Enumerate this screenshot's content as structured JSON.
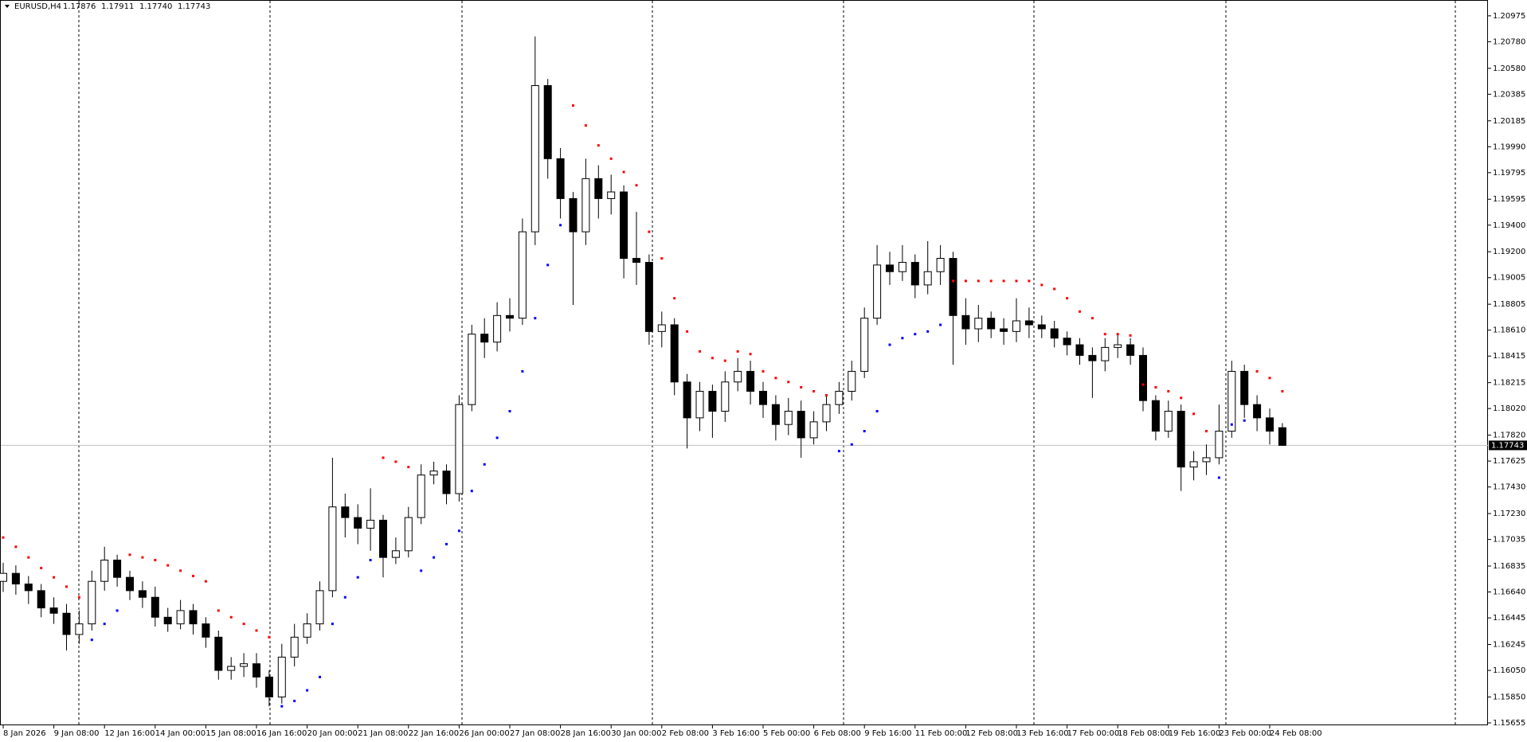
{
  "chart_data": {
    "type": "candlestick",
    "title": "EURUSD,H4",
    "ohlc_labels": [
      "1.17876",
      "1.17911",
      "1.17740",
      "1.17743"
    ],
    "price_label": {
      "value": 1.17743,
      "label": "1.17743"
    },
    "bull_color": "#ffffff",
    "bear_color": "#000000",
    "sar_colors": {
      "above": "#ff0000",
      "below": "#0000ff"
    },
    "open": [
      1.1672,
      1.1678,
      1.167,
      1.1665,
      1.1652,
      1.1648,
      1.1632,
      1.164,
      1.1672,
      1.1688,
      1.1675,
      1.1665,
      1.166,
      1.1645,
      1.164,
      1.165,
      1.164,
      1.163,
      1.1605,
      1.1608,
      1.161,
      1.16,
      1.1585,
      1.1615,
      1.163,
      1.164,
      1.1665,
      1.1728,
      1.172,
      1.1712,
      1.1718,
      1.169,
      1.1695,
      1.172,
      1.1752,
      1.1755,
      1.1738,
      1.1805,
      1.1858,
      1.1852,
      1.1872,
      1.187,
      1.1935,
      1.2045,
      1.199,
      1.196,
      1.1935,
      1.1975,
      1.196,
      1.1965,
      1.1915,
      1.1912,
      1.186,
      1.1865,
      1.1822,
      1.1795,
      1.1815,
      1.18,
      1.1822,
      1.183,
      1.1815,
      1.1805,
      1.179,
      1.18,
      1.178,
      1.1792,
      1.1805,
      1.1815,
      1.183,
      1.187,
      1.191,
      1.1905,
      1.1912,
      1.1895,
      1.1905,
      1.1915,
      1.1872,
      1.1862,
      1.187,
      1.1862,
      1.186,
      1.1868,
      1.1865,
      1.1862,
      1.1855,
      1.185,
      1.1842,
      1.1838,
      1.1848,
      1.185,
      1.1842,
      1.1808,
      1.1785,
      1.18,
      1.1758,
      1.1762,
      1.1765,
      1.1785,
      1.183,
      1.1805,
      1.1795,
      1.17876
    ],
    "high": [
      1.1686,
      1.1684,
      1.1676,
      1.167,
      1.166,
      1.1655,
      1.165,
      1.168,
      1.1698,
      1.1692,
      1.168,
      1.1672,
      1.1668,
      1.1652,
      1.1658,
      1.1655,
      1.1645,
      1.1635,
      1.1615,
      1.1618,
      1.1618,
      1.1605,
      1.1625,
      1.164,
      1.1648,
      1.1672,
      1.1765,
      1.1738,
      1.173,
      1.1742,
      1.1722,
      1.1705,
      1.1728,
      1.176,
      1.1762,
      1.176,
      1.1812,
      1.1865,
      1.187,
      1.1882,
      1.1885,
      1.1945,
      1.2082,
      1.205,
      1.1998,
      1.1965,
      1.199,
      1.1985,
      1.1978,
      1.197,
      1.195,
      1.1918,
      1.1875,
      1.187,
      1.1828,
      1.1822,
      1.182,
      1.183,
      1.184,
      1.1838,
      1.1822,
      1.1812,
      1.181,
      1.1808,
      1.18,
      1.1812,
      1.1822,
      1.1838,
      1.1878,
      1.1925,
      1.192,
      1.1925,
      1.1918,
      1.1928,
      1.1925,
      1.192,
      1.1885,
      1.188,
      1.1875,
      1.187,
      1.1885,
      1.1878,
      1.1872,
      1.1868,
      1.186,
      1.1855,
      1.1848,
      1.1855,
      1.1858,
      1.1855,
      1.1848,
      1.1812,
      1.1808,
      1.1805,
      1.177,
      1.1775,
      1.1805,
      1.1838,
      1.1835,
      1.1812,
      1.1802,
      1.17911
    ],
    "low": [
      1.1664,
      1.1662,
      1.1655,
      1.1645,
      1.164,
      1.162,
      1.1625,
      1.1635,
      1.1665,
      1.1668,
      1.1658,
      1.1652,
      1.1638,
      1.1634,
      1.1636,
      1.1632,
      1.1622,
      1.1598,
      1.1598,
      1.16,
      1.1592,
      1.1578,
      1.158,
      1.1608,
      1.1625,
      1.1635,
      1.166,
      1.1705,
      1.17,
      1.1695,
      1.1675,
      1.1685,
      1.169,
      1.1715,
      1.1745,
      1.173,
      1.1732,
      1.18,
      1.184,
      1.1845,
      1.186,
      1.1865,
      1.1925,
      1.1975,
      1.1945,
      1.188,
      1.1925,
      1.1945,
      1.1948,
      1.19,
      1.1895,
      1.185,
      1.1848,
      1.1812,
      1.1772,
      1.1785,
      1.178,
      1.1792,
      1.1815,
      1.1805,
      1.1795,
      1.1778,
      1.1782,
      1.1765,
      1.1775,
      1.1785,
      1.1798,
      1.1808,
      1.1825,
      1.1865,
      1.1895,
      1.1898,
      1.1885,
      1.1888,
      1.1895,
      1.1835,
      1.185,
      1.1852,
      1.1855,
      1.185,
      1.1852,
      1.1855,
      1.1855,
      1.1848,
      1.1842,
      1.1835,
      1.181,
      1.183,
      1.184,
      1.1835,
      1.18,
      1.1778,
      1.178,
      1.174,
      1.1748,
      1.1752,
      1.176,
      1.178,
      1.1795,
      1.1785,
      1.1775,
      1.1774
    ],
    "close": [
      1.1678,
      1.167,
      1.1665,
      1.1652,
      1.1648,
      1.1632,
      1.164,
      1.1672,
      1.1688,
      1.1675,
      1.1665,
      1.166,
      1.1645,
      1.164,
      1.165,
      1.164,
      1.163,
      1.1605,
      1.1608,
      1.161,
      1.16,
      1.1585,
      1.1615,
      1.163,
      1.164,
      1.1665,
      1.1728,
      1.172,
      1.1712,
      1.1718,
      1.169,
      1.1695,
      1.172,
      1.1752,
      1.1755,
      1.1738,
      1.1805,
      1.1858,
      1.1852,
      1.1872,
      1.187,
      1.1935,
      1.2045,
      1.199,
      1.196,
      1.1935,
      1.1975,
      1.196,
      1.1965,
      1.1915,
      1.1912,
      1.186,
      1.1865,
      1.1822,
      1.1795,
      1.1815,
      1.18,
      1.1822,
      1.183,
      1.1815,
      1.1805,
      1.179,
      1.18,
      1.178,
      1.1792,
      1.1805,
      1.1815,
      1.183,
      1.187,
      1.191,
      1.1905,
      1.1912,
      1.1895,
      1.1905,
      1.1915,
      1.1872,
      1.1862,
      1.187,
      1.1862,
      1.186,
      1.1868,
      1.1865,
      1.1862,
      1.1855,
      1.185,
      1.1842,
      1.1838,
      1.1848,
      1.185,
      1.1842,
      1.1808,
      1.1785,
      1.18,
      1.1758,
      1.1762,
      1.1765,
      1.1785,
      1.183,
      1.1805,
      1.1795,
      1.1785,
      1.17743
    ],
    "sar": [
      1.1705,
      1.1698,
      1.169,
      1.1682,
      1.1675,
      1.1668,
      1.166,
      1.1628,
      1.164,
      1.165,
      1.1692,
      1.169,
      1.1688,
      1.1684,
      1.168,
      1.1676,
      1.1672,
      1.165,
      1.1645,
      1.164,
      1.1635,
      1.163,
      1.1578,
      1.1582,
      1.159,
      1.16,
      1.164,
      1.166,
      1.1675,
      1.1688,
      1.1765,
      1.1762,
      1.1758,
      1.168,
      1.169,
      1.17,
      1.171,
      1.174,
      1.176,
      1.178,
      1.18,
      1.183,
      1.187,
      1.191,
      1.194,
      1.203,
      1.2015,
      1.2,
      1.199,
      1.198,
      1.197,
      1.1935,
      1.1915,
      1.1885,
      1.186,
      1.1845,
      1.184,
      1.1838,
      1.1845,
      1.1843,
      1.183,
      1.1825,
      1.1822,
      1.1818,
      1.1815,
      1.1812,
      1.177,
      1.1775,
      1.1785,
      1.18,
      1.185,
      1.1855,
      1.1858,
      1.186,
      1.1865,
      1.1898,
      1.1898,
      1.1898,
      1.1898,
      1.1898,
      1.1898,
      1.1898,
      1.1895,
      1.1892,
      1.1885,
      1.1875,
      1.187,
      1.1858,
      1.1858,
      1.1857,
      1.182,
      1.1818,
      1.1815,
      1.181,
      1.1798,
      1.1785,
      1.175,
      1.179,
      1.1793,
      1.183,
      1.1825,
      1.1815
    ],
    "ylim": [
      1.15643,
      1.21094
    ],
    "yticks": [
      {
        "value": 1.20975,
        "label": "1.20975"
      },
      {
        "value": 1.2078,
        "label": "1.20780"
      },
      {
        "value": 1.2058,
        "label": "1.20580"
      },
      {
        "value": 1.20385,
        "label": "1.20385"
      },
      {
        "value": 1.20185,
        "label": "1.20185"
      },
      {
        "value": 1.1999,
        "label": "1.19990"
      },
      {
        "value": 1.19795,
        "label": "1.19795"
      },
      {
        "value": 1.19595,
        "label": "1.19595"
      },
      {
        "value": 1.194,
        "label": "1.19400"
      },
      {
        "value": 1.192,
        "label": "1.19200"
      },
      {
        "value": 1.19005,
        "label": "1.19005"
      },
      {
        "value": 1.18805,
        "label": "1.18805"
      },
      {
        "value": 1.1861,
        "label": "1.18610"
      },
      {
        "value": 1.18415,
        "label": "1.18415"
      },
      {
        "value": 1.18215,
        "label": "1.18215"
      },
      {
        "value": 1.1802,
        "label": "1.18020"
      },
      {
        "value": 1.1782,
        "label": "1.17820"
      },
      {
        "value": 1.17625,
        "label": "1.17625"
      },
      {
        "value": 1.1743,
        "label": "1.17430"
      },
      {
        "value": 1.1723,
        "label": "1.17230"
      },
      {
        "value": 1.17035,
        "label": "1.17035"
      },
      {
        "value": 1.16835,
        "label": "1.16835"
      },
      {
        "value": 1.1664,
        "label": "1.16640"
      },
      {
        "value": 1.16445,
        "label": "1.16445"
      },
      {
        "value": 1.16245,
        "label": "1.16245"
      },
      {
        "value": 1.1605,
        "label": "1.16050"
      },
      {
        "value": 1.1585,
        "label": "1.15850"
      },
      {
        "value": 1.15655,
        "label": "1.15655"
      }
    ],
    "xticks": [
      {
        "value": 0,
        "label": "8 Jan 2026"
      },
      {
        "value": 4,
        "label": "9 Jan 08:00"
      },
      {
        "value": 8,
        "label": "12 Jan 16:00"
      },
      {
        "value": 12,
        "label": "14 Jan 00:00"
      },
      {
        "value": 16,
        "label": "15 Jan 08:00"
      },
      {
        "value": 20,
        "label": "16 Jan 16:00"
      },
      {
        "value": 24,
        "label": "20 Jan 00:00"
      },
      {
        "value": 28,
        "label": "21 Jan 08:00"
      },
      {
        "value": 32,
        "label": "22 Jan 16:00"
      },
      {
        "value": 36,
        "label": "26 Jan 00:00"
      },
      {
        "value": 40,
        "label": "27 Jan 08:00"
      },
      {
        "value": 44,
        "label": "28 Jan 16:00"
      },
      {
        "value": 48,
        "label": "30 Jan 00:00"
      },
      {
        "value": 52,
        "label": "2 Feb 08:00"
      },
      {
        "value": 56,
        "label": "3 Feb 16:00"
      },
      {
        "value": 60,
        "label": "5 Feb 00:00"
      },
      {
        "value": 64,
        "label": "6 Feb 08:00"
      },
      {
        "value": 68,
        "label": "9 Feb 16:00"
      },
      {
        "value": 72,
        "label": "11 Feb 00:00"
      },
      {
        "value": 76,
        "label": "12 Feb 08:00"
      },
      {
        "value": 80,
        "label": "13 Feb 16:00"
      },
      {
        "value": 84,
        "label": "17 Feb 00:00"
      },
      {
        "value": 88,
        "label": "18 Feb 08:00"
      },
      {
        "value": 92,
        "label": "19 Feb 16:00"
      },
      {
        "value": 96,
        "label": "23 Feb 00:00"
      },
      {
        "value": 100,
        "label": "24 Feb 08:00"
      }
    ]
  }
}
